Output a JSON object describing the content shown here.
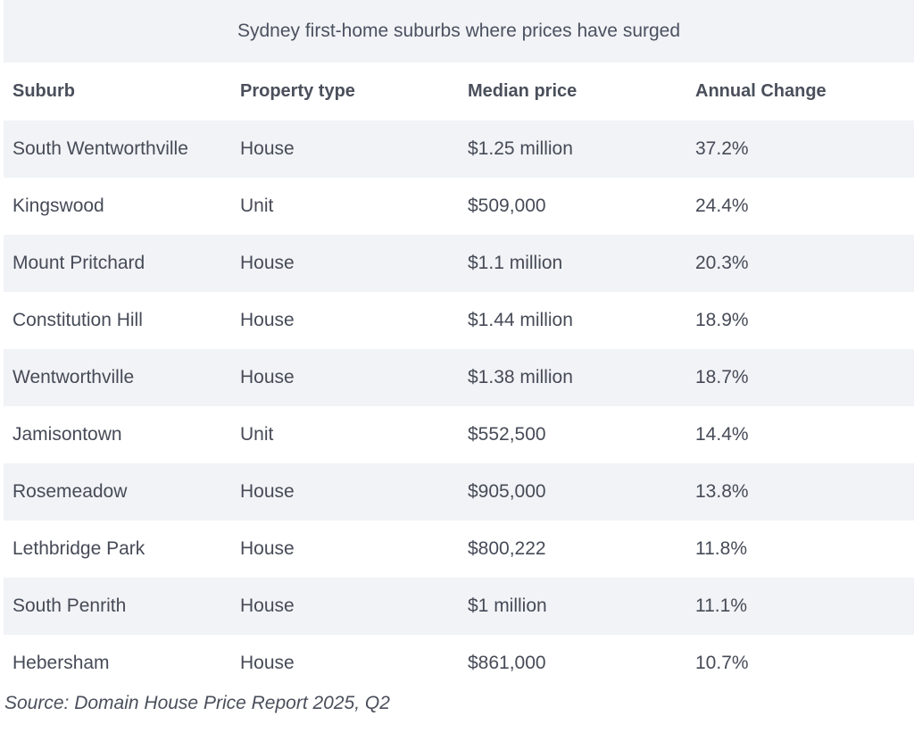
{
  "title": "Sydney first-home suburbs where prices have surged",
  "source": "Source: Domain House Price Report 2025, Q2",
  "chart_data": {
    "type": "table",
    "title": "Sydney first-home suburbs where prices have surged",
    "columns": [
      "Suburb",
      "Property type",
      "Median price",
      "Annual Change"
    ],
    "rows": [
      [
        "South Wentworthville",
        "House",
        "$1.25 million",
        "37.2%"
      ],
      [
        "Kingswood",
        "Unit",
        "$509,000",
        "24.4%"
      ],
      [
        "Mount Pritchard",
        "House",
        "$1.1 million",
        "20.3%"
      ],
      [
        "Constitution Hill",
        "House",
        "$1.44 million",
        "18.9%"
      ],
      [
        "Wentworthville",
        "House",
        "$1.38 million",
        "18.7%"
      ],
      [
        "Jamisontown",
        "Unit",
        "$552,500",
        "14.4%"
      ],
      [
        "Rosemeadow",
        "House",
        "$905,000",
        "13.8%"
      ],
      [
        "Lethbridge Park",
        "House",
        "$800,222",
        "11.8%"
      ],
      [
        "South Penrith",
        "House",
        "$1 million",
        "11.1%"
      ],
      [
        "Hebersham",
        "House",
        "$861,000",
        "10.7%"
      ]
    ]
  }
}
